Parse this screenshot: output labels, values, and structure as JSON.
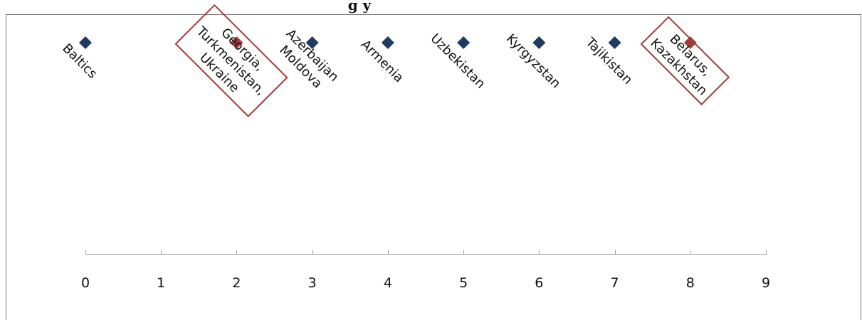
{
  "chart_data": {
    "type": "scatter",
    "title_fragment": "g   y",
    "xlabel": "",
    "ylabel": "",
    "xlim": [
      0,
      9
    ],
    "x_ticks": [
      "0",
      "1",
      "2",
      "3",
      "4",
      "5",
      "6",
      "7",
      "8",
      "9"
    ],
    "grid": false,
    "points": [
      {
        "x": 0,
        "label_lines": [
          "Baltics"
        ],
        "color": "#1f3a63",
        "highlight": false
      },
      {
        "x": 2,
        "label_lines": [
          "Georgia,",
          "Turkmenistan,",
          "Ukraine"
        ],
        "color": "#a03c3c",
        "highlight": true
      },
      {
        "x": 3,
        "label_lines": [
          "Azerbaijan",
          "Moldova"
        ],
        "color": "#1f3a63",
        "highlight": false
      },
      {
        "x": 4,
        "label_lines": [
          "Armenia"
        ],
        "color": "#1f3a63",
        "highlight": false
      },
      {
        "x": 5,
        "label_lines": [
          "Uzbekistan"
        ],
        "color": "#1f3a63",
        "highlight": false
      },
      {
        "x": 6,
        "label_lines": [
          "Kyrgyzstan"
        ],
        "color": "#1f3a63",
        "highlight": false
      },
      {
        "x": 7,
        "label_lines": [
          "Tajikistan"
        ],
        "color": "#1f3a63",
        "highlight": false
      },
      {
        "x": 8,
        "label_lines": [
          "Belarus,",
          "Kazakhstan"
        ],
        "color": "#a03c3c",
        "highlight": true
      }
    ],
    "colors": {
      "default_marker": "#1f3a63",
      "highlight_marker": "#a03c3c",
      "highlight_box": "#a03c3c",
      "axis": "#9a9a9a",
      "frame": "#777777"
    }
  }
}
